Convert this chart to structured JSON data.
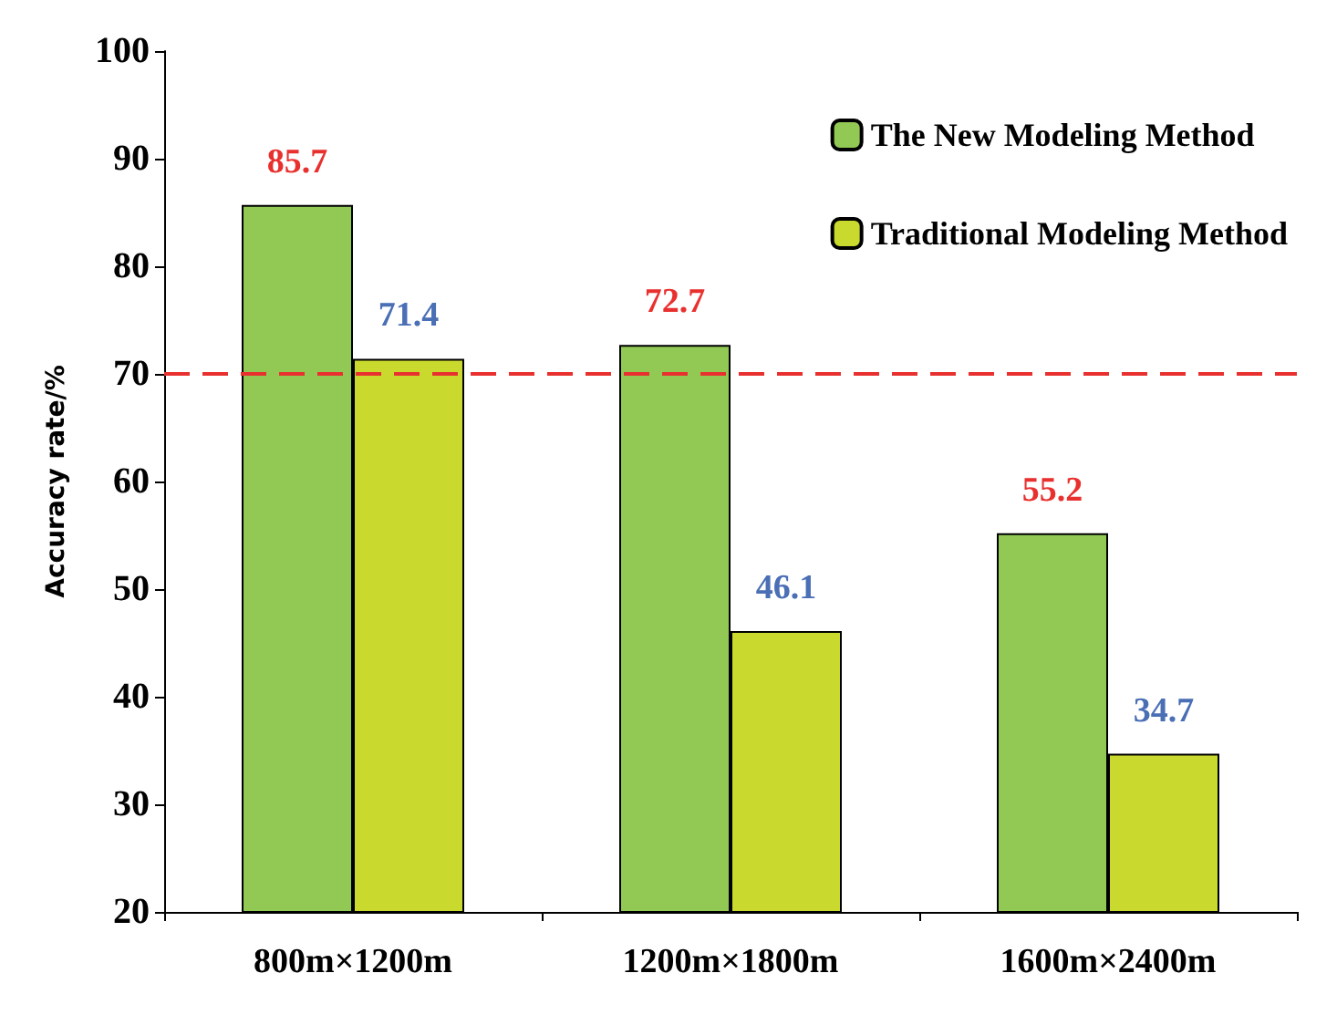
{
  "chart_data": {
    "type": "bar",
    "ylabel": "Accuracy rate/%",
    "categories": [
      "800m×1200m",
      "1200m×1800m",
      "1600m×2400m"
    ],
    "series": [
      {
        "name": "The New Modeling Method",
        "color": "#92c955",
        "values": [
          85.7,
          72.7,
          55.2
        ]
      },
      {
        "name": "Traditional Modeling Method",
        "color": "#c9d92e",
        "values": [
          71.4,
          46.1,
          34.7
        ]
      }
    ],
    "ylim": [
      20,
      100
    ],
    "yticks": [
      20,
      30,
      40,
      50,
      60,
      70,
      80,
      90,
      100
    ],
    "ref_lines": [
      {
        "axis": "y",
        "value": 70,
        "color": "#e8312f",
        "line_style": "dashed"
      }
    ],
    "data_labels": true,
    "legend": "top right",
    "grid": false
  }
}
